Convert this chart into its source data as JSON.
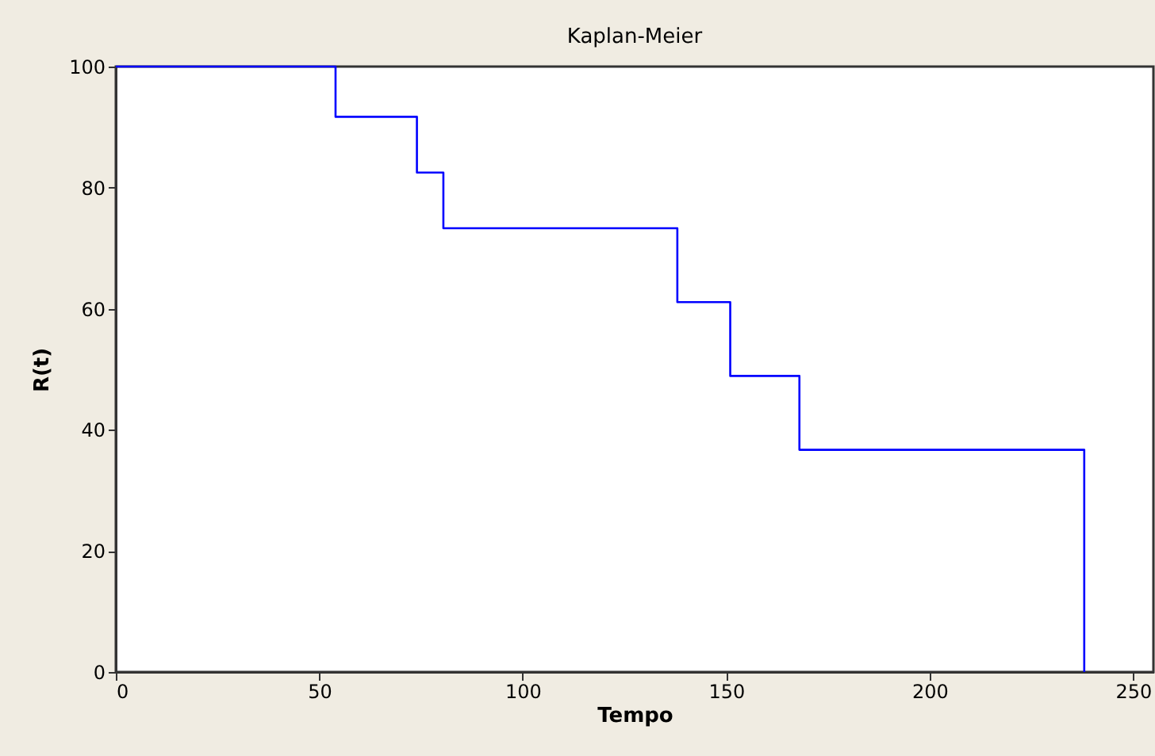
{
  "chart_data": {
    "type": "step",
    "title": "Kaplan-Meier",
    "xlabel": "Tempo",
    "ylabel": "R(t)",
    "x": [
      0,
      54,
      74,
      80.5,
      138,
      151,
      168,
      238
    ],
    "series": [
      {
        "color": "#0000ff",
        "values": [
          100,
          91.7,
          82.5,
          73.3,
          61.1,
          48.9,
          36.7,
          0
        ]
      }
    ],
    "xlim": [
      0,
      255
    ],
    "xticks": [
      0,
      50,
      100,
      150,
      200,
      250
    ],
    "ylim": [
      0,
      100
    ],
    "yticks": [
      0,
      20,
      40,
      60,
      80,
      100
    ],
    "grid": false
  }
}
